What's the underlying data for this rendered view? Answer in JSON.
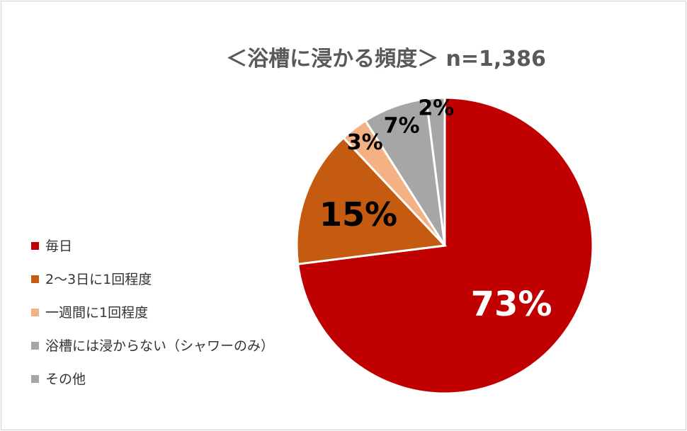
{
  "chart_data": {
    "type": "pie",
    "title": "＜浴槽に浸かる頻度＞ n=1,386",
    "categories": [
      "毎日",
      "2～3日に1回程度",
      "一週間に1回程度",
      "浴槽には浸からない（シャワーのみ）",
      "その他"
    ],
    "values": [
      73,
      15,
      3,
      7,
      2
    ],
    "data_labels": [
      "73%",
      "15%",
      "3%",
      "7%",
      "2%"
    ],
    "colors": [
      "#c00000",
      "#c55a11",
      "#f4b183",
      "#a6a6a6",
      "#a6a6a6"
    ],
    "label_colors": [
      "#ffffff",
      "#000000",
      "#000000",
      "#000000",
      "#000000"
    ],
    "legend_position": "left"
  }
}
